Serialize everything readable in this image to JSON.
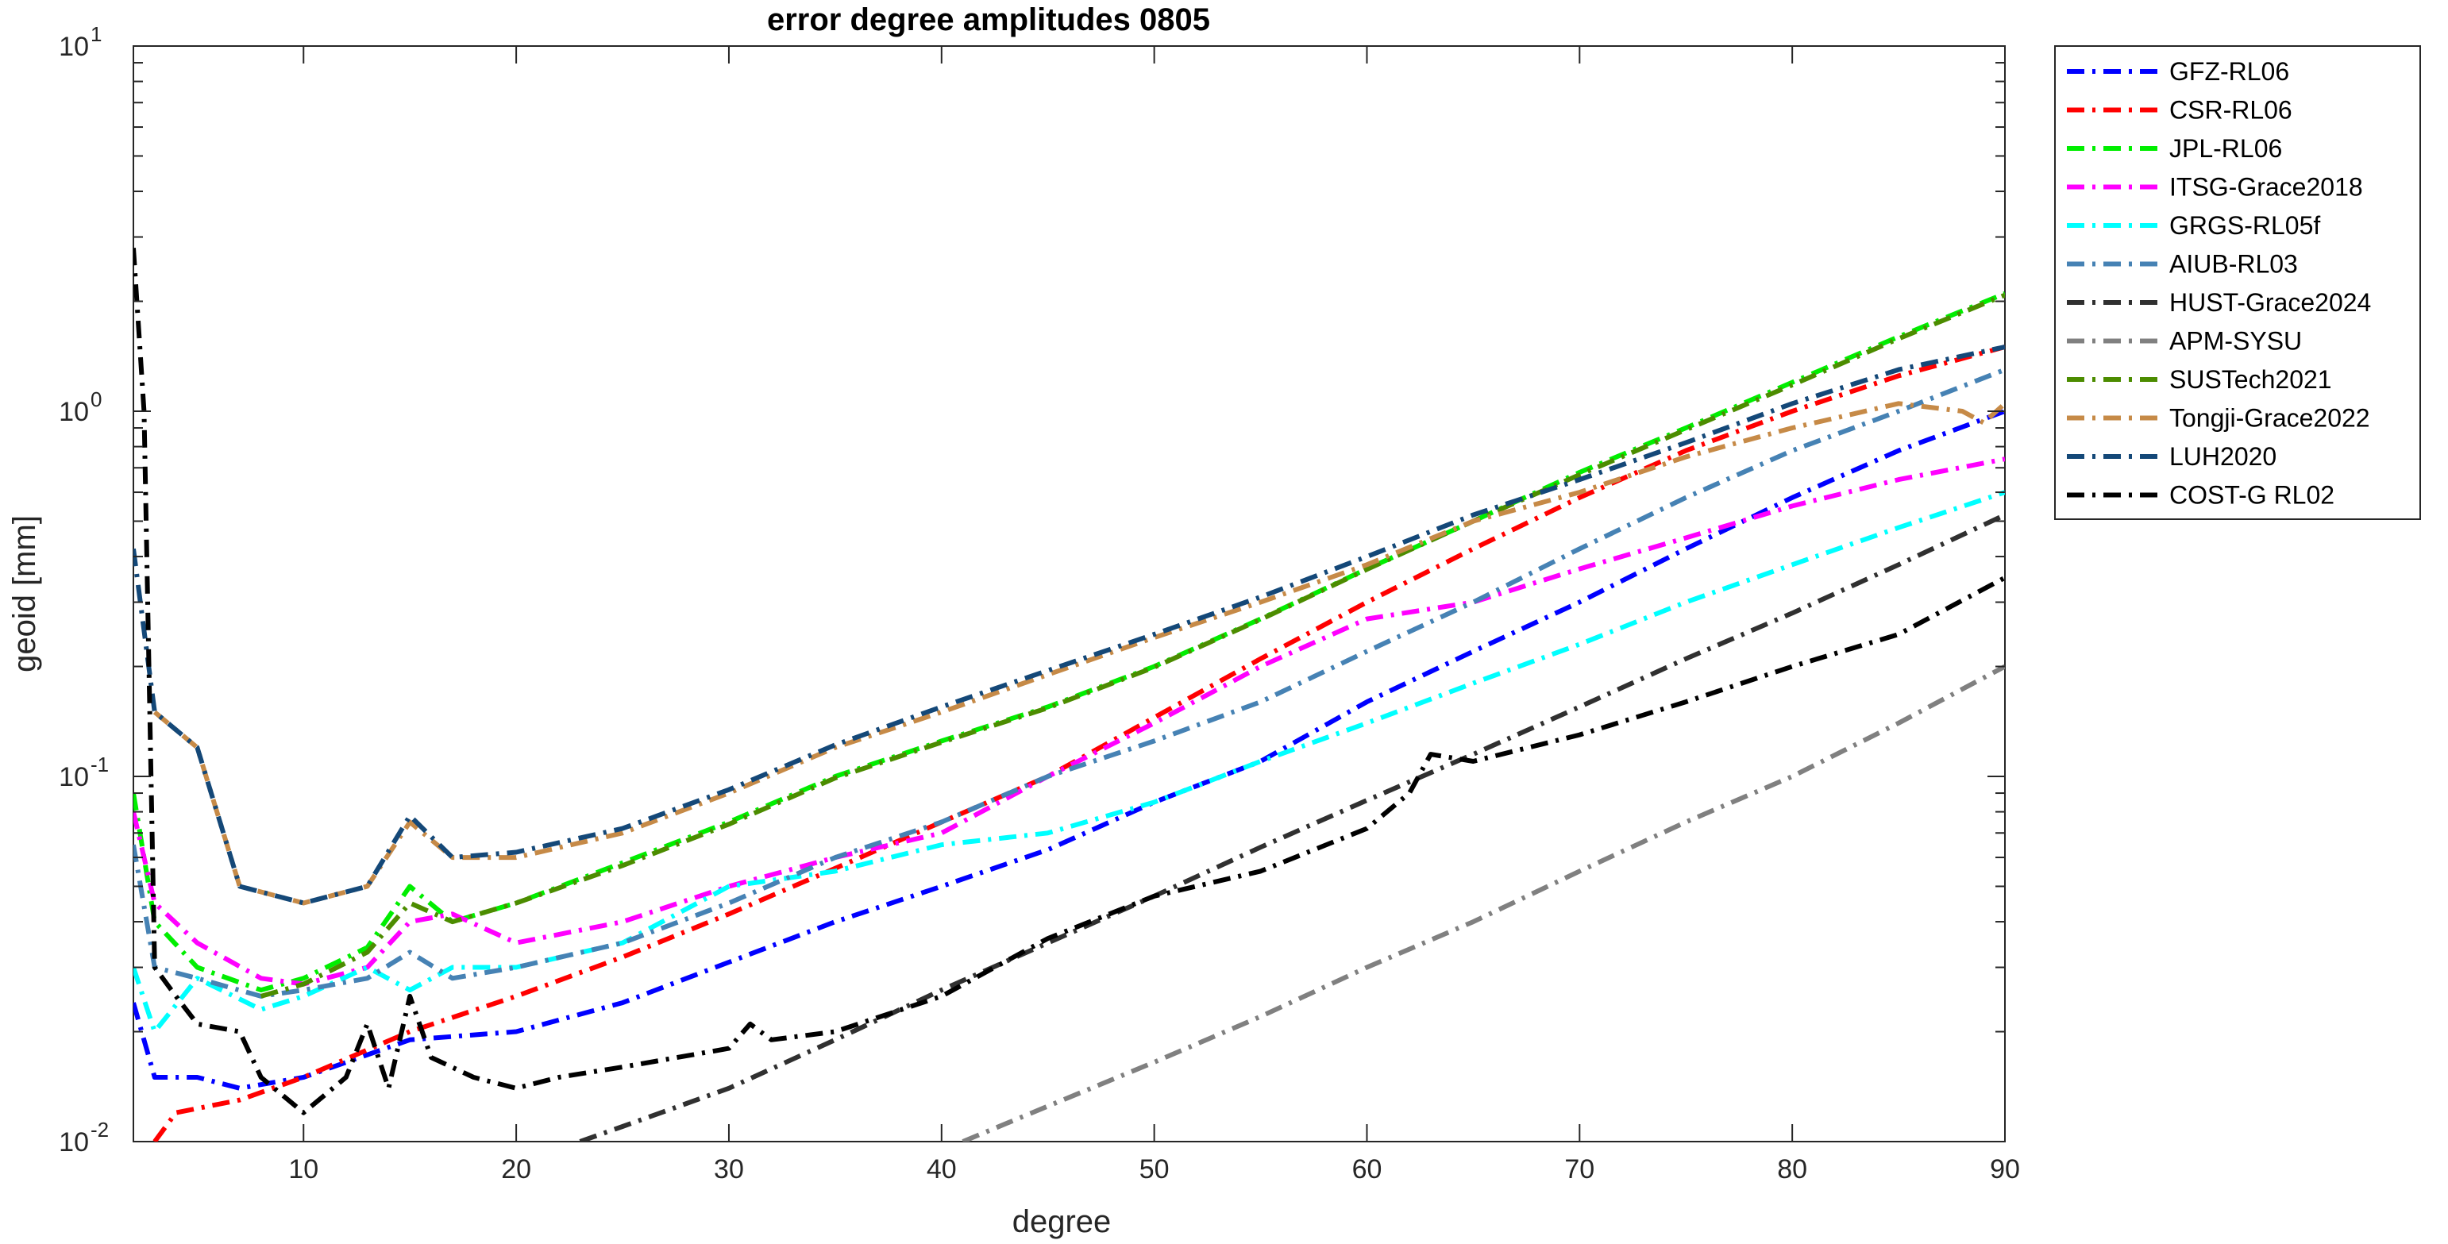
{
  "chart_data": {
    "type": "line",
    "title": "error degree amplitudes 0805",
    "xlabel": "degree",
    "ylabel": "geoid [mm]",
    "xlim": [
      2,
      90
    ],
    "ylim": [
      0.01,
      10
    ],
    "yscale": "log",
    "grid": false,
    "legend_position": "outside-top-right",
    "x_ticks": [
      10,
      20,
      30,
      40,
      50,
      60,
      70,
      80,
      90
    ],
    "x_tick_labels": [
      "10",
      "20",
      "30",
      "40",
      "50",
      "60",
      "70",
      "80",
      "90"
    ],
    "y_ticks": [
      {
        "value": 0.01,
        "base": "10",
        "exp": "-2"
      },
      {
        "value": 0.1,
        "base": "10",
        "exp": "-1"
      },
      {
        "value": 1,
        "base": "10",
        "exp": "0"
      },
      {
        "value": 10,
        "base": "10",
        "exp": "1"
      }
    ],
    "series": [
      {
        "name": "GFZ-RL06",
        "color": "#0000ff",
        "points": [
          [
            2,
            0.024
          ],
          [
            3,
            0.015
          ],
          [
            5,
            0.015
          ],
          [
            7,
            0.014
          ],
          [
            10,
            0.015
          ],
          [
            15,
            0.019
          ],
          [
            20,
            0.02
          ],
          [
            25,
            0.024
          ],
          [
            30,
            0.031
          ],
          [
            35,
            0.04
          ],
          [
            40,
            0.05
          ],
          [
            45,
            0.063
          ],
          [
            50,
            0.085
          ],
          [
            55,
            0.11
          ],
          [
            60,
            0.16
          ],
          [
            65,
            0.22
          ],
          [
            70,
            0.3
          ],
          [
            75,
            0.42
          ],
          [
            80,
            0.58
          ],
          [
            85,
            0.78
          ],
          [
            90,
            1.0
          ]
        ]
      },
      {
        "name": "CSR-RL06",
        "color": "#ff0000",
        "points": [
          [
            3,
            0.01
          ],
          [
            4,
            0.012
          ],
          [
            7,
            0.013
          ],
          [
            10,
            0.015
          ],
          [
            15,
            0.02
          ],
          [
            20,
            0.025
          ],
          [
            25,
            0.032
          ],
          [
            30,
            0.042
          ],
          [
            35,
            0.056
          ],
          [
            40,
            0.075
          ],
          [
            45,
            0.1
          ],
          [
            50,
            0.145
          ],
          [
            55,
            0.21
          ],
          [
            60,
            0.3
          ],
          [
            65,
            0.42
          ],
          [
            70,
            0.58
          ],
          [
            75,
            0.78
          ],
          [
            80,
            1.0
          ],
          [
            85,
            1.25
          ],
          [
            90,
            1.5
          ]
        ]
      },
      {
        "name": "JPL-RL06",
        "color": "#00ee00",
        "points": [
          [
            2,
            0.09
          ],
          [
            3,
            0.04
          ],
          [
            5,
            0.03
          ],
          [
            8,
            0.026
          ],
          [
            10,
            0.028
          ],
          [
            13,
            0.034
          ],
          [
            15,
            0.05
          ],
          [
            17,
            0.04
          ],
          [
            20,
            0.045
          ],
          [
            25,
            0.058
          ],
          [
            30,
            0.075
          ],
          [
            35,
            0.1
          ],
          [
            40,
            0.125
          ],
          [
            45,
            0.155
          ],
          [
            50,
            0.2
          ],
          [
            55,
            0.27
          ],
          [
            60,
            0.37
          ],
          [
            65,
            0.5
          ],
          [
            70,
            0.68
          ],
          [
            75,
            0.9
          ],
          [
            80,
            1.2
          ],
          [
            85,
            1.6
          ],
          [
            90,
            2.1
          ]
        ]
      },
      {
        "name": "ITSG-Grace2018",
        "color": "#ff00ff",
        "points": [
          [
            2,
            0.08
          ],
          [
            3,
            0.045
          ],
          [
            5,
            0.035
          ],
          [
            8,
            0.028
          ],
          [
            10,
            0.027
          ],
          [
            13,
            0.03
          ],
          [
            15,
            0.04
          ],
          [
            17,
            0.042
          ],
          [
            20,
            0.035
          ],
          [
            25,
            0.04
          ],
          [
            30,
            0.05
          ],
          [
            35,
            0.06
          ],
          [
            40,
            0.07
          ],
          [
            45,
            0.1
          ],
          [
            50,
            0.14
          ],
          [
            55,
            0.2
          ],
          [
            60,
            0.27
          ],
          [
            65,
            0.3
          ],
          [
            70,
            0.37
          ],
          [
            75,
            0.45
          ],
          [
            80,
            0.55
          ],
          [
            85,
            0.65
          ],
          [
            90,
            0.74
          ]
        ]
      },
      {
        "name": "GRGS-RL05f",
        "color": "#00ffff",
        "points": [
          [
            2,
            0.03
          ],
          [
            3,
            0.02
          ],
          [
            5,
            0.028
          ],
          [
            8,
            0.023
          ],
          [
            10,
            0.025
          ],
          [
            13,
            0.03
          ],
          [
            15,
            0.026
          ],
          [
            17,
            0.03
          ],
          [
            20,
            0.03
          ],
          [
            25,
            0.035
          ],
          [
            30,
            0.05
          ],
          [
            35,
            0.055
          ],
          [
            40,
            0.065
          ],
          [
            45,
            0.07
          ],
          [
            50,
            0.085
          ],
          [
            55,
            0.11
          ],
          [
            60,
            0.14
          ],
          [
            65,
            0.18
          ],
          [
            70,
            0.23
          ],
          [
            75,
            0.3
          ],
          [
            80,
            0.38
          ],
          [
            85,
            0.48
          ],
          [
            90,
            0.6
          ]
        ]
      },
      {
        "name": "AIUB-RL03",
        "color": "#4682b4",
        "points": [
          [
            2,
            0.065
          ],
          [
            3,
            0.03
          ],
          [
            5,
            0.028
          ],
          [
            8,
            0.025
          ],
          [
            10,
            0.026
          ],
          [
            13,
            0.028
          ],
          [
            15,
            0.033
          ],
          [
            17,
            0.028
          ],
          [
            20,
            0.03
          ],
          [
            25,
            0.035
          ],
          [
            30,
            0.045
          ],
          [
            35,
            0.06
          ],
          [
            40,
            0.075
          ],
          [
            45,
            0.1
          ],
          [
            50,
            0.125
          ],
          [
            55,
            0.16
          ],
          [
            60,
            0.22
          ],
          [
            65,
            0.3
          ],
          [
            70,
            0.42
          ],
          [
            75,
            0.58
          ],
          [
            80,
            0.78
          ],
          [
            85,
            1.0
          ],
          [
            90,
            1.3
          ]
        ]
      },
      {
        "name": "HUST-Grace2024",
        "color": "#303030",
        "points": [
          [
            23,
            0.01
          ],
          [
            25,
            0.011
          ],
          [
            30,
            0.014
          ],
          [
            35,
            0.019
          ],
          [
            40,
            0.026
          ],
          [
            45,
            0.035
          ],
          [
            50,
            0.047
          ],
          [
            55,
            0.064
          ],
          [
            60,
            0.086
          ],
          [
            65,
            0.115
          ],
          [
            70,
            0.155
          ],
          [
            75,
            0.21
          ],
          [
            80,
            0.28
          ],
          [
            85,
            0.38
          ],
          [
            90,
            0.52
          ]
        ]
      },
      {
        "name": "APM-SYSU",
        "color": "#808080",
        "points": [
          [
            41,
            0.01
          ],
          [
            45,
            0.0125
          ],
          [
            50,
            0.0165
          ],
          [
            55,
            0.022
          ],
          [
            60,
            0.03
          ],
          [
            65,
            0.04
          ],
          [
            70,
            0.055
          ],
          [
            75,
            0.075
          ],
          [
            80,
            0.1
          ],
          [
            85,
            0.14
          ],
          [
            90,
            0.2
          ]
        ]
      },
      {
        "name": "SUSTech2021",
        "color": "#4c8c00",
        "points": [
          [
            8,
            0.025
          ],
          [
            10,
            0.027
          ],
          [
            13,
            0.033
          ],
          [
            15,
            0.045
          ],
          [
            17,
            0.04
          ],
          [
            20,
            0.045
          ],
          [
            25,
            0.057
          ],
          [
            30,
            0.074
          ],
          [
            35,
            0.099
          ],
          [
            40,
            0.124
          ],
          [
            45,
            0.154
          ],
          [
            50,
            0.199
          ],
          [
            55,
            0.269
          ],
          [
            60,
            0.369
          ],
          [
            65,
            0.5
          ],
          [
            70,
            0.67
          ],
          [
            75,
            0.89
          ],
          [
            80,
            1.18
          ],
          [
            85,
            1.58
          ],
          [
            90,
            2.08
          ]
        ]
      },
      {
        "name": "Tongji-Grace2022",
        "color": "#c68a47",
        "points": [
          [
            3,
            0.15
          ],
          [
            5,
            0.12
          ],
          [
            7,
            0.05
          ],
          [
            10,
            0.045
          ],
          [
            13,
            0.05
          ],
          [
            15,
            0.075
          ],
          [
            17,
            0.06
          ],
          [
            20,
            0.06
          ],
          [
            25,
            0.07
          ],
          [
            30,
            0.09
          ],
          [
            35,
            0.12
          ],
          [
            40,
            0.15
          ],
          [
            45,
            0.19
          ],
          [
            50,
            0.24
          ],
          [
            55,
            0.3
          ],
          [
            60,
            0.38
          ],
          [
            65,
            0.5
          ],
          [
            70,
            0.6
          ],
          [
            75,
            0.75
          ],
          [
            80,
            0.9
          ],
          [
            85,
            1.05
          ],
          [
            88,
            1.0
          ],
          [
            89,
            0.93
          ],
          [
            90,
            1.05
          ]
        ]
      },
      {
        "name": "LUH2020",
        "color": "#144878",
        "points": [
          [
            2,
            0.42
          ],
          [
            3,
            0.15
          ],
          [
            5,
            0.12
          ],
          [
            7,
            0.05
          ],
          [
            10,
            0.045
          ],
          [
            13,
            0.05
          ],
          [
            15,
            0.078
          ],
          [
            17,
            0.06
          ],
          [
            20,
            0.062
          ],
          [
            25,
            0.072
          ],
          [
            30,
            0.092
          ],
          [
            35,
            0.122
          ],
          [
            40,
            0.155
          ],
          [
            45,
            0.195
          ],
          [
            50,
            0.245
          ],
          [
            55,
            0.31
          ],
          [
            60,
            0.4
          ],
          [
            65,
            0.52
          ],
          [
            70,
            0.65
          ],
          [
            75,
            0.82
          ],
          [
            80,
            1.05
          ],
          [
            85,
            1.3
          ],
          [
            90,
            1.5
          ]
        ]
      },
      {
        "name": "COST-G RL02",
        "color": "#000000",
        "points": [
          [
            2,
            2.8
          ],
          [
            2.5,
            1.0
          ],
          [
            3,
            0.03
          ],
          [
            4,
            0.025
          ],
          [
            5,
            0.021
          ],
          [
            7,
            0.02
          ],
          [
            8,
            0.015
          ],
          [
            10,
            0.012
          ],
          [
            12,
            0.015
          ],
          [
            13,
            0.021
          ],
          [
            14,
            0.014
          ],
          [
            15,
            0.025
          ],
          [
            16,
            0.017
          ],
          [
            18,
            0.015
          ],
          [
            20,
            0.014
          ],
          [
            22,
            0.015
          ],
          [
            25,
            0.016
          ],
          [
            30,
            0.018
          ],
          [
            31,
            0.021
          ],
          [
            32,
            0.019
          ],
          [
            35,
            0.02
          ],
          [
            40,
            0.025
          ],
          [
            45,
            0.036
          ],
          [
            50,
            0.047
          ],
          [
            55,
            0.055
          ],
          [
            60,
            0.072
          ],
          [
            62,
            0.09
          ],
          [
            63,
            0.115
          ],
          [
            65,
            0.11
          ],
          [
            70,
            0.13
          ],
          [
            75,
            0.16
          ],
          [
            80,
            0.2
          ],
          [
            85,
            0.245
          ],
          [
            90,
            0.35
          ]
        ]
      }
    ]
  }
}
